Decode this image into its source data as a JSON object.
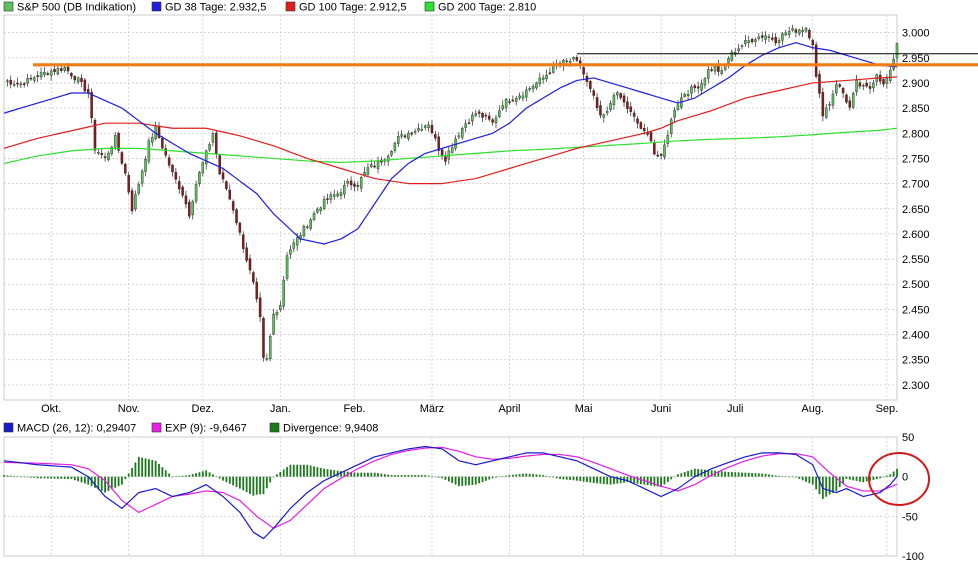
{
  "colors": {
    "price_up": "#5cc15c",
    "price_down": "#8b1a1a",
    "gd38": "#1e1ee0",
    "gd100": "#e01e1e",
    "gd200": "#2ee02e",
    "orange_line": "#f07c14",
    "resistance_line": "#000000",
    "macd_line": "#1a1acc",
    "exp_line": "#e61ee6",
    "divergence": "#1c7a1c",
    "annotation_circle": "#d01818",
    "grid": "#cccccc"
  },
  "chart_data": [
    {
      "type": "candlestick",
      "legend": [
        {
          "label": "S&P 500 (DB Indikation)",
          "color": "#5cc15c"
        },
        {
          "label": "GD 38 Tage: 2.932,5",
          "color": "#1e1ee0"
        },
        {
          "label": "GD 100 Tage: 2.912,5",
          "color": "#e01e1e"
        },
        {
          "label": "GD 200 Tage: 2.810",
          "color": "#2ee02e"
        }
      ],
      "x_tick_labels": [
        "Okt.",
        "Nov.",
        "Dez.",
        "Jan.",
        "Feb.",
        "März",
        "April",
        "Mai",
        "Juni",
        "Juli",
        "Aug.",
        "Sep."
      ],
      "x_tick_day_index": [
        14,
        37,
        59,
        82,
        104,
        127,
        150,
        172,
        195,
        217,
        240,
        262
      ],
      "y_ticks": [
        2300,
        2350,
        2400,
        2450,
        2500,
        2550,
        2600,
        2650,
        2700,
        2750,
        2800,
        2850,
        2900,
        2950,
        3000
      ],
      "y_tick_labels": [
        "2.300",
        "2.350",
        "2.400",
        "2.450",
        "2.500",
        "2.550",
        "2.600",
        "2.650",
        "2.700",
        "2.750",
        "2.800",
        "2.850",
        "2.900",
        "2.950",
        "3.000"
      ],
      "ylim": [
        2270,
        3035
      ],
      "num_days": 266,
      "close_keyframes": [
        [
          0,
          2905
        ],
        [
          5,
          2898
        ],
        [
          10,
          2915
        ],
        [
          14,
          2924
        ],
        [
          18,
          2930
        ],
        [
          22,
          2905
        ],
        [
          25,
          2880
        ],
        [
          27,
          2770
        ],
        [
          30,
          2750
        ],
        [
          33,
          2790
        ],
        [
          36,
          2720
        ],
        [
          38,
          2650
        ],
        [
          40,
          2700
        ],
        [
          43,
          2780
        ],
        [
          45,
          2810
        ],
        [
          48,
          2755
        ],
        [
          50,
          2720
        ],
        [
          53,
          2680
        ],
        [
          55,
          2640
        ],
        [
          57,
          2700
        ],
        [
          60,
          2760
        ],
        [
          62,
          2800
        ],
        [
          64,
          2720
        ],
        [
          66,
          2690
        ],
        [
          68,
          2650
        ],
        [
          70,
          2600
        ],
        [
          72,
          2550
        ],
        [
          74,
          2500
        ],
        [
          76,
          2430
        ],
        [
          77,
          2350
        ],
        [
          78,
          2350
        ],
        [
          80,
          2440
        ],
        [
          82,
          2460
        ],
        [
          84,
          2560
        ],
        [
          86,
          2580
        ],
        [
          88,
          2600
        ],
        [
          90,
          2620
        ],
        [
          93,
          2650
        ],
        [
          96,
          2670
        ],
        [
          99,
          2680
        ],
        [
          102,
          2700
        ],
        [
          105,
          2700
        ],
        [
          108,
          2730
        ],
        [
          111,
          2740
        ],
        [
          114,
          2760
        ],
        [
          117,
          2790
        ],
        [
          120,
          2800
        ],
        [
          123,
          2810
        ],
        [
          126,
          2820
        ],
        [
          129,
          2770
        ],
        [
          131,
          2750
        ],
        [
          134,
          2790
        ],
        [
          137,
          2820
        ],
        [
          140,
          2840
        ],
        [
          143,
          2830
        ],
        [
          145,
          2820
        ],
        [
          148,
          2860
        ],
        [
          151,
          2870
        ],
        [
          154,
          2880
        ],
        [
          157,
          2895
        ],
        [
          160,
          2910
        ],
        [
          163,
          2930
        ],
        [
          166,
          2940
        ],
        [
          169,
          2945
        ],
        [
          171,
          2935
        ],
        [
          173,
          2900
        ],
        [
          175,
          2870
        ],
        [
          177,
          2830
        ],
        [
          179,
          2840
        ],
        [
          181,
          2880
        ],
        [
          183,
          2870
        ],
        [
          186,
          2840
        ],
        [
          188,
          2820
        ],
        [
          190,
          2800
        ],
        [
          192,
          2790
        ],
        [
          193,
          2760
        ],
        [
          195,
          2750
        ],
        [
          197,
          2800
        ],
        [
          199,
          2850
        ],
        [
          202,
          2880
        ],
        [
          205,
          2890
        ],
        [
          207,
          2900
        ],
        [
          209,
          2925
        ],
        [
          211,
          2930
        ],
        [
          213,
          2920
        ],
        [
          215,
          2950
        ],
        [
          217,
          2965
        ],
        [
          220,
          2980
        ],
        [
          223,
          2990
        ],
        [
          226,
          2995
        ],
        [
          229,
          2985
        ],
        [
          232,
          3000
        ],
        [
          235,
          3005
        ],
        [
          238,
          3010
        ],
        [
          240,
          2980
        ],
        [
          241,
          2910
        ],
        [
          243,
          2840
        ],
        [
          245,
          2860
        ],
        [
          247,
          2900
        ],
        [
          249,
          2880
        ],
        [
          251,
          2850
        ],
        [
          253,
          2900
        ],
        [
          255,
          2890
        ],
        [
          257,
          2890
        ],
        [
          259,
          2920
        ],
        [
          261,
          2895
        ],
        [
          263,
          2920
        ],
        [
          265,
          2980
        ]
      ],
      "gd38_keyframes": [
        [
          0,
          2840
        ],
        [
          10,
          2860
        ],
        [
          20,
          2880
        ],
        [
          25,
          2880
        ],
        [
          35,
          2850
        ],
        [
          45,
          2800
        ],
        [
          55,
          2760
        ],
        [
          65,
          2730
        ],
        [
          75,
          2680
        ],
        [
          80,
          2640
        ],
        [
          88,
          2590
        ],
        [
          95,
          2580
        ],
        [
          100,
          2590
        ],
        [
          105,
          2610
        ],
        [
          110,
          2660
        ],
        [
          115,
          2710
        ],
        [
          120,
          2740
        ],
        [
          125,
          2760
        ],
        [
          130,
          2770
        ],
        [
          135,
          2780
        ],
        [
          140,
          2790
        ],
        [
          145,
          2800
        ],
        [
          150,
          2820
        ],
        [
          155,
          2850
        ],
        [
          160,
          2870
        ],
        [
          165,
          2890
        ],
        [
          170,
          2905
        ],
        [
          175,
          2910
        ],
        [
          180,
          2900
        ],
        [
          185,
          2890
        ],
        [
          190,
          2880
        ],
        [
          195,
          2870
        ],
        [
          200,
          2860
        ],
        [
          205,
          2870
        ],
        [
          210,
          2890
        ],
        [
          215,
          2910
        ],
        [
          220,
          2935
        ],
        [
          225,
          2955
        ],
        [
          230,
          2970
        ],
        [
          235,
          2980
        ],
        [
          240,
          2970
        ],
        [
          245,
          2965
        ],
        [
          250,
          2955
        ],
        [
          255,
          2945
        ],
        [
          260,
          2935
        ],
        [
          265,
          2932
        ]
      ],
      "gd100_keyframes": [
        [
          0,
          2770
        ],
        [
          10,
          2790
        ],
        [
          20,
          2805
        ],
        [
          30,
          2820
        ],
        [
          40,
          2820
        ],
        [
          50,
          2810
        ],
        [
          60,
          2810
        ],
        [
          70,
          2795
        ],
        [
          80,
          2775
        ],
        [
          90,
          2750
        ],
        [
          100,
          2730
        ],
        [
          110,
          2710
        ],
        [
          120,
          2700
        ],
        [
          130,
          2700
        ],
        [
          140,
          2710
        ],
        [
          150,
          2730
        ],
        [
          160,
          2750
        ],
        [
          170,
          2770
        ],
        [
          180,
          2785
        ],
        [
          190,
          2800
        ],
        [
          195,
          2810
        ],
        [
          200,
          2825
        ],
        [
          210,
          2845
        ],
        [
          220,
          2870
        ],
        [
          230,
          2885
        ],
        [
          240,
          2900
        ],
        [
          250,
          2905
        ],
        [
          260,
          2910
        ],
        [
          265,
          2912
        ]
      ],
      "gd200_keyframes": [
        [
          0,
          2740
        ],
        [
          10,
          2755
        ],
        [
          20,
          2765
        ],
        [
          30,
          2770
        ],
        [
          40,
          2770
        ],
        [
          50,
          2765
        ],
        [
          60,
          2760
        ],
        [
          70,
          2755
        ],
        [
          80,
          2750
        ],
        [
          90,
          2745
        ],
        [
          100,
          2742
        ],
        [
          110,
          2745
        ],
        [
          120,
          2750
        ],
        [
          130,
          2755
        ],
        [
          140,
          2760
        ],
        [
          150,
          2765
        ],
        [
          160,
          2768
        ],
        [
          170,
          2772
        ],
        [
          180,
          2776
        ],
        [
          190,
          2780
        ],
        [
          200,
          2785
        ],
        [
          210,
          2788
        ],
        [
          220,
          2790
        ],
        [
          230,
          2793
        ],
        [
          240,
          2797
        ],
        [
          250,
          2802
        ],
        [
          260,
          2806
        ],
        [
          265,
          2810
        ]
      ],
      "orange_resistance": 2936,
      "black_resistance": 2958,
      "black_resistance_start_day": 170
    },
    {
      "type": "line+bar",
      "legend": [
        {
          "label": "MACD (26, 12): 0,29407",
          "color": "#1a1acc"
        },
        {
          "label": "EXP (9): -9,6467",
          "color": "#e61ee6"
        },
        {
          "label": "Divergence: 9,9408",
          "color": "#1c7a1c"
        }
      ],
      "y_ticks": [
        50,
        0,
        -50,
        -100
      ],
      "y_tick_labels": [
        "50",
        "0",
        "-50",
        "-100"
      ],
      "ylim": [
        -100,
        50
      ],
      "macd_keyframes": [
        [
          0,
          20
        ],
        [
          10,
          15
        ],
        [
          20,
          12
        ],
        [
          25,
          0
        ],
        [
          30,
          -25
        ],
        [
          35,
          -40
        ],
        [
          40,
          -20
        ],
        [
          45,
          -15
        ],
        [
          50,
          -25
        ],
        [
          55,
          -20
        ],
        [
          60,
          -10
        ],
        [
          65,
          -25
        ],
        [
          70,
          -45
        ],
        [
          74,
          -70
        ],
        [
          77,
          -78
        ],
        [
          80,
          -65
        ],
        [
          85,
          -40
        ],
        [
          90,
          -20
        ],
        [
          95,
          -5
        ],
        [
          100,
          5
        ],
        [
          105,
          15
        ],
        [
          110,
          25
        ],
        [
          115,
          30
        ],
        [
          120,
          35
        ],
        [
          125,
          38
        ],
        [
          130,
          35
        ],
        [
          135,
          20
        ],
        [
          140,
          15
        ],
        [
          145,
          20
        ],
        [
          150,
          25
        ],
        [
          155,
          30
        ],
        [
          160,
          30
        ],
        [
          165,
          25
        ],
        [
          170,
          20
        ],
        [
          175,
          10
        ],
        [
          180,
          0
        ],
        [
          185,
          -5
        ],
        [
          190,
          -15
        ],
        [
          195,
          -25
        ],
        [
          200,
          -15
        ],
        [
          205,
          0
        ],
        [
          210,
          10
        ],
        [
          215,
          18
        ],
        [
          220,
          25
        ],
        [
          225,
          30
        ],
        [
          230,
          30
        ],
        [
          235,
          28
        ],
        [
          240,
          15
        ],
        [
          243,
          -15
        ],
        [
          247,
          -20
        ],
        [
          250,
          -15
        ],
        [
          255,
          -25
        ],
        [
          260,
          -20
        ],
        [
          263,
          -10
        ],
        [
          265,
          0.29
        ]
      ],
      "exp_keyframes": [
        [
          0,
          18
        ],
        [
          10,
          17
        ],
        [
          20,
          15
        ],
        [
          25,
          10
        ],
        [
          30,
          -5
        ],
        [
          35,
          -30
        ],
        [
          40,
          -45
        ],
        [
          45,
          -35
        ],
        [
          50,
          -25
        ],
        [
          55,
          -22
        ],
        [
          60,
          -18
        ],
        [
          65,
          -20
        ],
        [
          70,
          -30
        ],
        [
          75,
          -50
        ],
        [
          80,
          -65
        ],
        [
          85,
          -55
        ],
        [
          90,
          -35
        ],
        [
          95,
          -15
        ],
        [
          100,
          -2
        ],
        [
          105,
          10
        ],
        [
          110,
          20
        ],
        [
          115,
          28
        ],
        [
          120,
          33
        ],
        [
          125,
          36
        ],
        [
          130,
          37
        ],
        [
          135,
          32
        ],
        [
          140,
          25
        ],
        [
          145,
          22
        ],
        [
          150,
          23
        ],
        [
          155,
          26
        ],
        [
          160,
          28
        ],
        [
          165,
          28
        ],
        [
          170,
          25
        ],
        [
          175,
          18
        ],
        [
          180,
          10
        ],
        [
          185,
          2
        ],
        [
          190,
          -5
        ],
        [
          195,
          -12
        ],
        [
          200,
          -18
        ],
        [
          205,
          -10
        ],
        [
          210,
          2
        ],
        [
          215,
          12
        ],
        [
          220,
          20
        ],
        [
          225,
          26
        ],
        [
          230,
          29
        ],
        [
          235,
          29
        ],
        [
          240,
          25
        ],
        [
          245,
          5
        ],
        [
          250,
          -12
        ],
        [
          255,
          -18
        ],
        [
          260,
          -18
        ],
        [
          265,
          -9.65
        ]
      ]
    }
  ]
}
